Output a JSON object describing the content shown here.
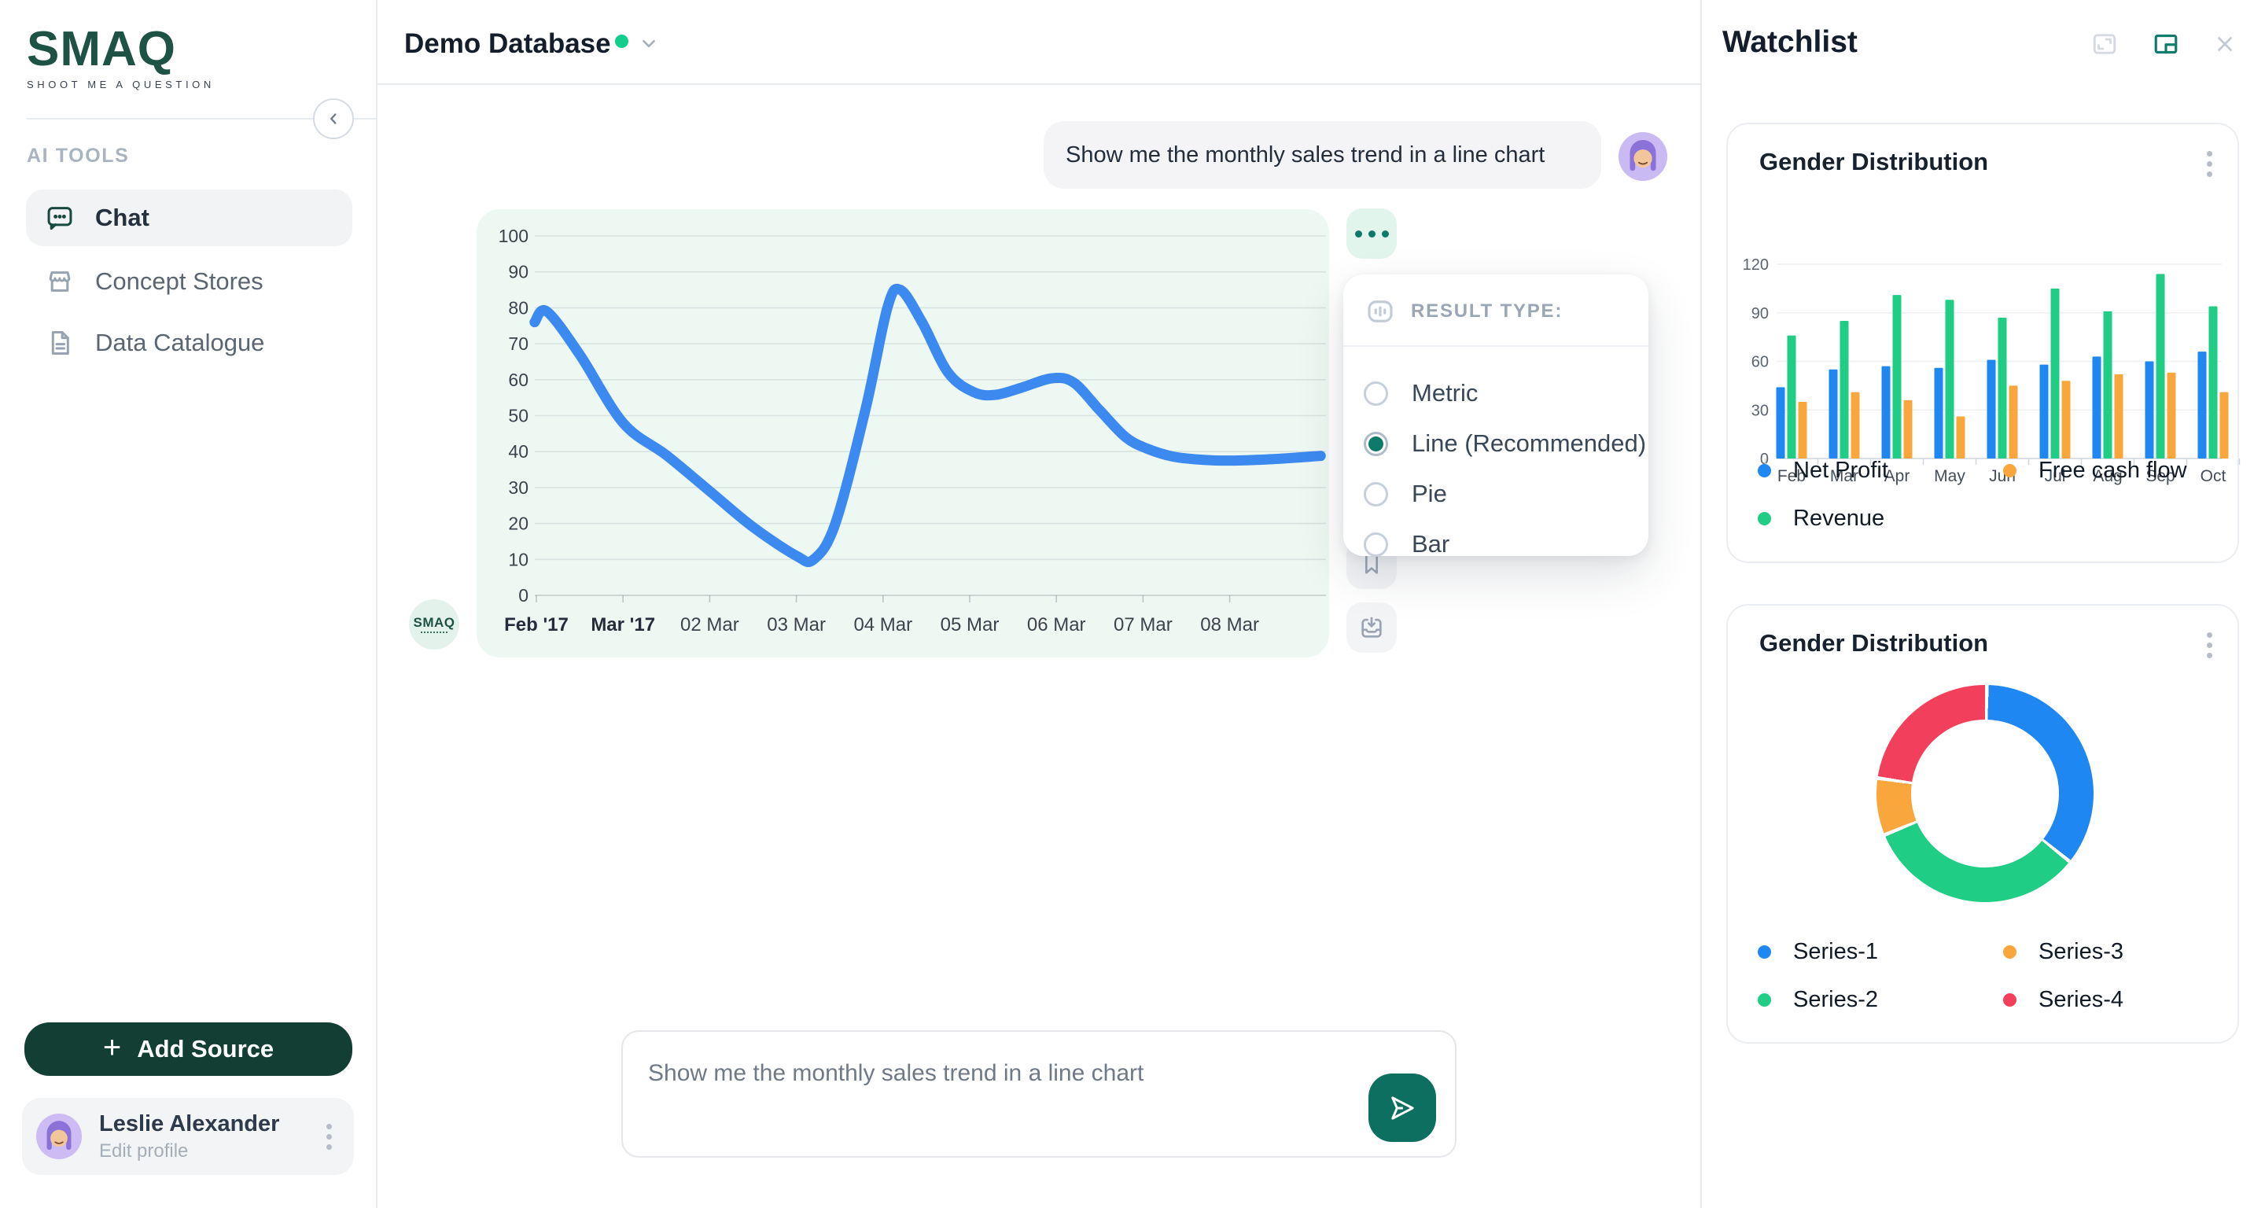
{
  "app": {
    "logo_text": "SMAQ",
    "logo_tagline": "SHOOT ME A QUESTION"
  },
  "sidebar": {
    "section_label": "AI TOOLS",
    "items": [
      {
        "label": "Chat",
        "active": true
      },
      {
        "label": "Concept Stores",
        "active": false
      },
      {
        "label": "Data Catalogue",
        "active": false
      }
    ],
    "add_source_label": "Add Source",
    "profile": {
      "name": "Leslie Alexander",
      "action": "Edit profile"
    }
  },
  "header": {
    "title": "Demo Database",
    "status": "connected"
  },
  "chat": {
    "user_message": "Show me the monthly sales trend in a line chart",
    "bot_avatar_text": "SMAQ"
  },
  "result_type_menu": {
    "title": "RESULT TYPE:",
    "options": [
      {
        "label": "Metric",
        "selected": false
      },
      {
        "label": "Line (Recommended)",
        "selected": true
      },
      {
        "label": "Pie",
        "selected": false
      },
      {
        "label": "Bar",
        "selected": false
      }
    ]
  },
  "composer": {
    "value": "Show me the monthly sales trend in a line chart"
  },
  "watchlist": {
    "title": "Watchlist",
    "cards": [
      {
        "title": "Gender Distribution"
      },
      {
        "title": "Gender Distribution"
      }
    ]
  },
  "icons": [
    "chat-icon",
    "storefront-icon",
    "document-icon",
    "chevron-left-icon",
    "chevron-down-icon",
    "plus-icon",
    "kebab-menu-icon",
    "more-dots-icon",
    "result-type-icon",
    "bookmark-icon",
    "inbox-arrow-down-icon",
    "send-icon",
    "expand-icon",
    "panel-layout-icon",
    "close-icon"
  ],
  "colors": {
    "brand_dark_green": "#123e34",
    "logo_green": "#1d5244",
    "teal_accent": "#0d7a6a",
    "mint_bg": "#edf8f2",
    "line_blue": "#3c89f0",
    "bar_blue": "#1f87f2",
    "bar_green": "#1fcd85",
    "bar_orange": "#f9a63c",
    "donut_red": "#f2405c",
    "status_green": "#12ce8c"
  },
  "chart_data": [
    {
      "type": "line",
      "title": "Monthly sales trend",
      "ylim": [
        0,
        100
      ],
      "yticks": [
        0,
        10,
        20,
        30,
        40,
        50,
        60,
        70,
        80,
        90,
        100
      ],
      "xticks": [
        {
          "label": "Feb '17",
          "bold": true
        },
        {
          "label": "Mar '17",
          "bold": true
        },
        {
          "label": "02 Mar",
          "bold": false
        },
        {
          "label": "03 Mar",
          "bold": false
        },
        {
          "label": "04 Mar",
          "bold": false
        },
        {
          "label": "05 Mar",
          "bold": false
        },
        {
          "label": "06 Mar",
          "bold": false
        },
        {
          "label": "07 Mar",
          "bold": false
        },
        {
          "label": "08 Mar",
          "bold": false
        }
      ],
      "points": [
        [
          -0.02,
          76
        ],
        [
          0.12,
          79
        ],
        [
          0.5,
          67
        ],
        [
          1,
          48
        ],
        [
          1.5,
          39
        ],
        [
          2,
          29
        ],
        [
          2.5,
          19
        ],
        [
          3,
          11
        ],
        [
          3.2,
          10
        ],
        [
          3.45,
          20
        ],
        [
          3.8,
          52
        ],
        [
          4.05,
          80
        ],
        [
          4.2,
          85
        ],
        [
          4.45,
          76
        ],
        [
          4.75,
          62
        ],
        [
          5.05,
          56.5
        ],
        [
          5.3,
          55.8
        ],
        [
          5.6,
          57.8
        ],
        [
          5.95,
          60.4
        ],
        [
          6.2,
          59.2
        ],
        [
          6.5,
          51.5
        ],
        [
          6.8,
          44
        ],
        [
          7.05,
          40.8
        ],
        [
          7.35,
          38.6
        ],
        [
          7.7,
          37.7
        ],
        [
          8.05,
          37.5
        ],
        [
          8.5,
          37.9
        ],
        [
          9.05,
          38.8
        ]
      ],
      "color": "#3c89f0",
      "grid": true
    },
    {
      "type": "bar",
      "title": "Gender Distribution",
      "categories": [
        "Feb",
        "Mar",
        "Apr",
        "May",
        "Jun",
        "Jul",
        "Aug",
        "Sep",
        "Oct"
      ],
      "yticks": [
        0,
        30,
        60,
        90,
        120
      ],
      "ylim": [
        0,
        120
      ],
      "series": [
        {
          "name": "Net Profit",
          "color": "#1f87f2",
          "values": [
            44,
            55,
            57,
            56,
            61,
            58,
            63,
            60,
            66
          ]
        },
        {
          "name": "Revenue",
          "color": "#1fcd85",
          "values": [
            76,
            85,
            101,
            98,
            87,
            105,
            91,
            114,
            94
          ]
        },
        {
          "name": "Free cash flow",
          "color": "#f9a63c",
          "values": [
            35,
            41,
            36,
            26,
            45,
            48,
            52,
            53,
            41
          ]
        }
      ],
      "legend": [
        {
          "label": "Net Profit",
          "color": "#1f87f2"
        },
        {
          "label": "Revenue",
          "color": "#1fcd85"
        },
        {
          "label": "Free cash flow",
          "color": "#f9a63c"
        }
      ],
      "legend_position": "bottom"
    },
    {
      "type": "pie",
      "title": "Gender Distribution",
      "donut": true,
      "labels": [
        "Series-1",
        "Series-2",
        "Series-3",
        "Series-4"
      ],
      "values": [
        35.5,
        33,
        8.5,
        23
      ],
      "colors": [
        "#1f87f2",
        "#1fcd85",
        "#f9a63c",
        "#f2405c"
      ],
      "legend": [
        {
          "label": "Series-1",
          "color": "#1f87f2"
        },
        {
          "label": "Series-2",
          "color": "#1fcd85"
        },
        {
          "label": "Series-3",
          "color": "#f9a63c"
        },
        {
          "label": "Series-4",
          "color": "#f2405c"
        }
      ],
      "legend_position": "bottom"
    }
  ]
}
